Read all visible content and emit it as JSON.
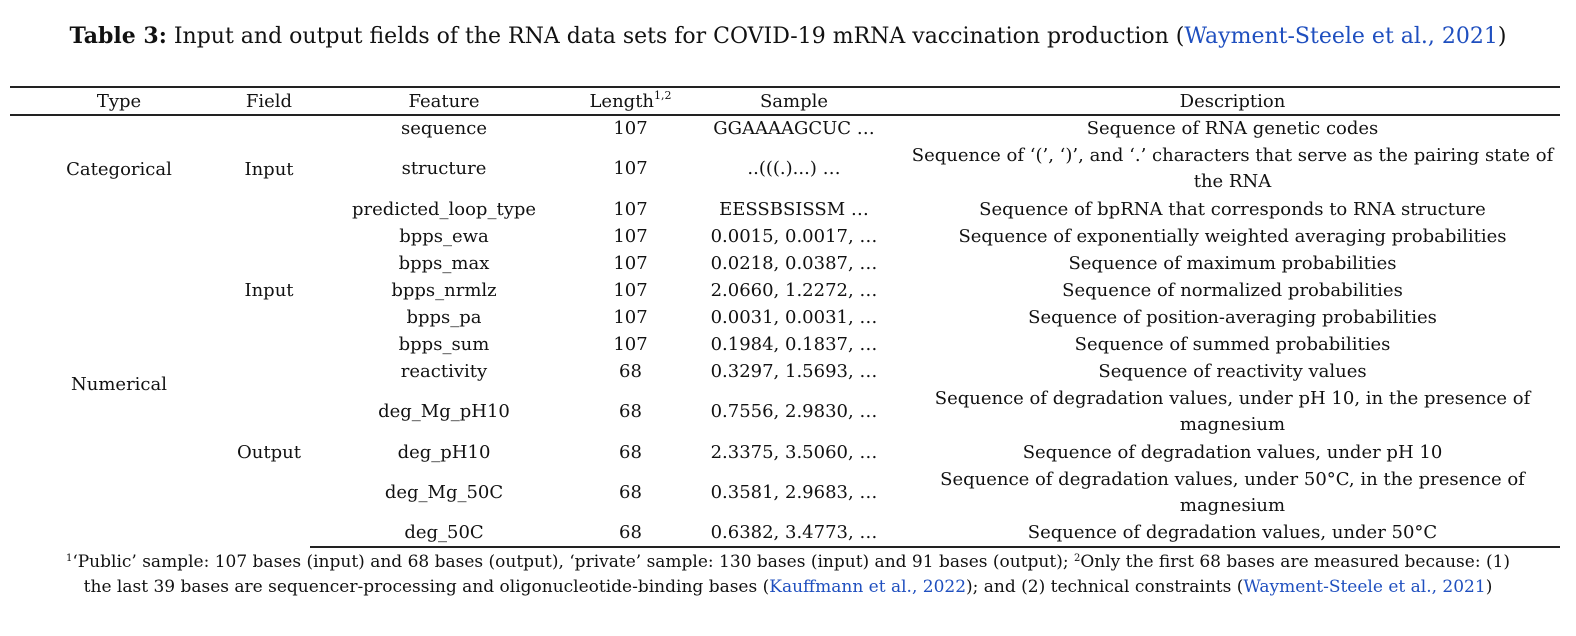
{
  "caption": {
    "label": "Table 3:",
    "text": "Input and output fields of the RNA data sets for COVID-19 mRNA vaccination production (",
    "citation": "Wayment-Steele et al., 2021",
    "close": ")"
  },
  "headers": {
    "type": "Type",
    "field": "Field",
    "feature": "Feature",
    "length": "Length",
    "length_sup": "1,2",
    "sample": "Sample",
    "description": "Description"
  },
  "groups": {
    "categorical": "Categorical",
    "numerical": "Numerical",
    "input1": "Input",
    "input2": "Input",
    "output": "Output"
  },
  "rows": [
    {
      "feature": "sequence",
      "length": "107",
      "sample": "GGAAAAGCUC …",
      "description": "Sequence of RNA genetic codes"
    },
    {
      "feature": "structure",
      "length": "107",
      "sample": "..(((.)...) …",
      "description": "Sequence of ‘(’, ‘)’, and ‘.’ characters that serve as the pairing state of the RNA"
    },
    {
      "feature": "predicted_loop_type",
      "length": "107",
      "sample": "EESSBSISSM …",
      "description": "Sequence of bpRNA that corresponds to RNA structure"
    },
    {
      "feature": "bpps_ewa",
      "length": "107",
      "sample": "0.0015, 0.0017, …",
      "description": "Sequence of exponentially weighted averaging probabilities"
    },
    {
      "feature": "bpps_max",
      "length": "107",
      "sample": "0.0218, 0.0387, …",
      "description": "Sequence of maximum probabilities"
    },
    {
      "feature": "bpps_nrmlz",
      "length": "107",
      "sample": "2.0660, 1.2272, …",
      "description": "Sequence of normalized probabilities"
    },
    {
      "feature": "bpps_pa",
      "length": "107",
      "sample": "0.0031, 0.0031, …",
      "description": "Sequence of position-averaging probabilities"
    },
    {
      "feature": "bpps_sum",
      "length": "107",
      "sample": "0.1984, 0.1837, …",
      "description": "Sequence of summed probabilities"
    },
    {
      "feature": "reactivity",
      "length": "68",
      "sample": "0.3297, 1.5693, …",
      "description": "Sequence of reactivity values"
    },
    {
      "feature": "deg_Mg_pH10",
      "length": "68",
      "sample": "0.7556, 2.9830, …",
      "description": "Sequence of degradation values, under pH 10, in the presence of magnesium"
    },
    {
      "feature": "deg_pH10",
      "length": "68",
      "sample": "2.3375, 3.5060, …",
      "description": "Sequence of degradation values, under pH 10"
    },
    {
      "feature": "deg_Mg_50C",
      "length": "68",
      "sample": "0.3581, 2.9683, …",
      "description": "Sequence of degradation values, under 50°C, in the presence of magnesium"
    },
    {
      "feature": "deg_50C",
      "length": "68",
      "sample": "0.6382, 3.4773, …",
      "description": "Sequence of degradation values, under 50°C"
    }
  ],
  "footnote": {
    "sup1": "1",
    "part1": "‘Public’ sample: 107 bases (input) and 68 bases (output), ‘private’ sample: 130 bases (input) and 91 bases (output); ",
    "sup2": "2",
    "part2": "Only the first 68 bases are measured because: (1) the last 39 bases are sequencer-processing and oligonucleotide-binding bases (",
    "cite1": "Kauffmann et al., 2022",
    "part3": "); and (2) technical constraints (",
    "cite2": "Wayment-Steele et al., 2021",
    "part4": ")"
  },
  "colors": {
    "citation": "#1f4fbf",
    "rule": "#222222"
  }
}
